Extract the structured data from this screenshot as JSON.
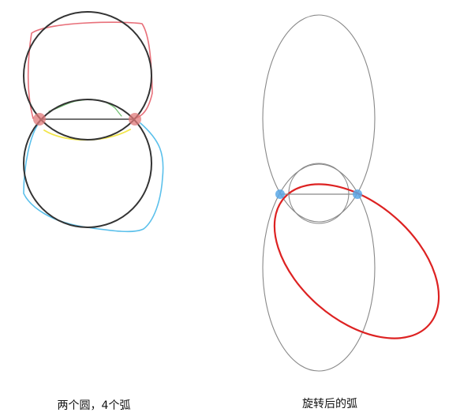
{
  "captions": {
    "left": "两个圆，4个弧",
    "right": "旋转后的弧"
  },
  "colors": {
    "circle": "#333333",
    "chord": "#444444",
    "endpoint_left_diagram": "#e07a7a",
    "arc_top": "#e8707a",
    "arc_inner_green": "#6cbf6c",
    "arc_inner_yellow": "#f2e64a",
    "arc_bottom": "#5bc0eb",
    "ellipse_gray": "#888888",
    "endpoint_right_diagram": "#5aa8e6",
    "rotated_arc": "#dd2222"
  }
}
